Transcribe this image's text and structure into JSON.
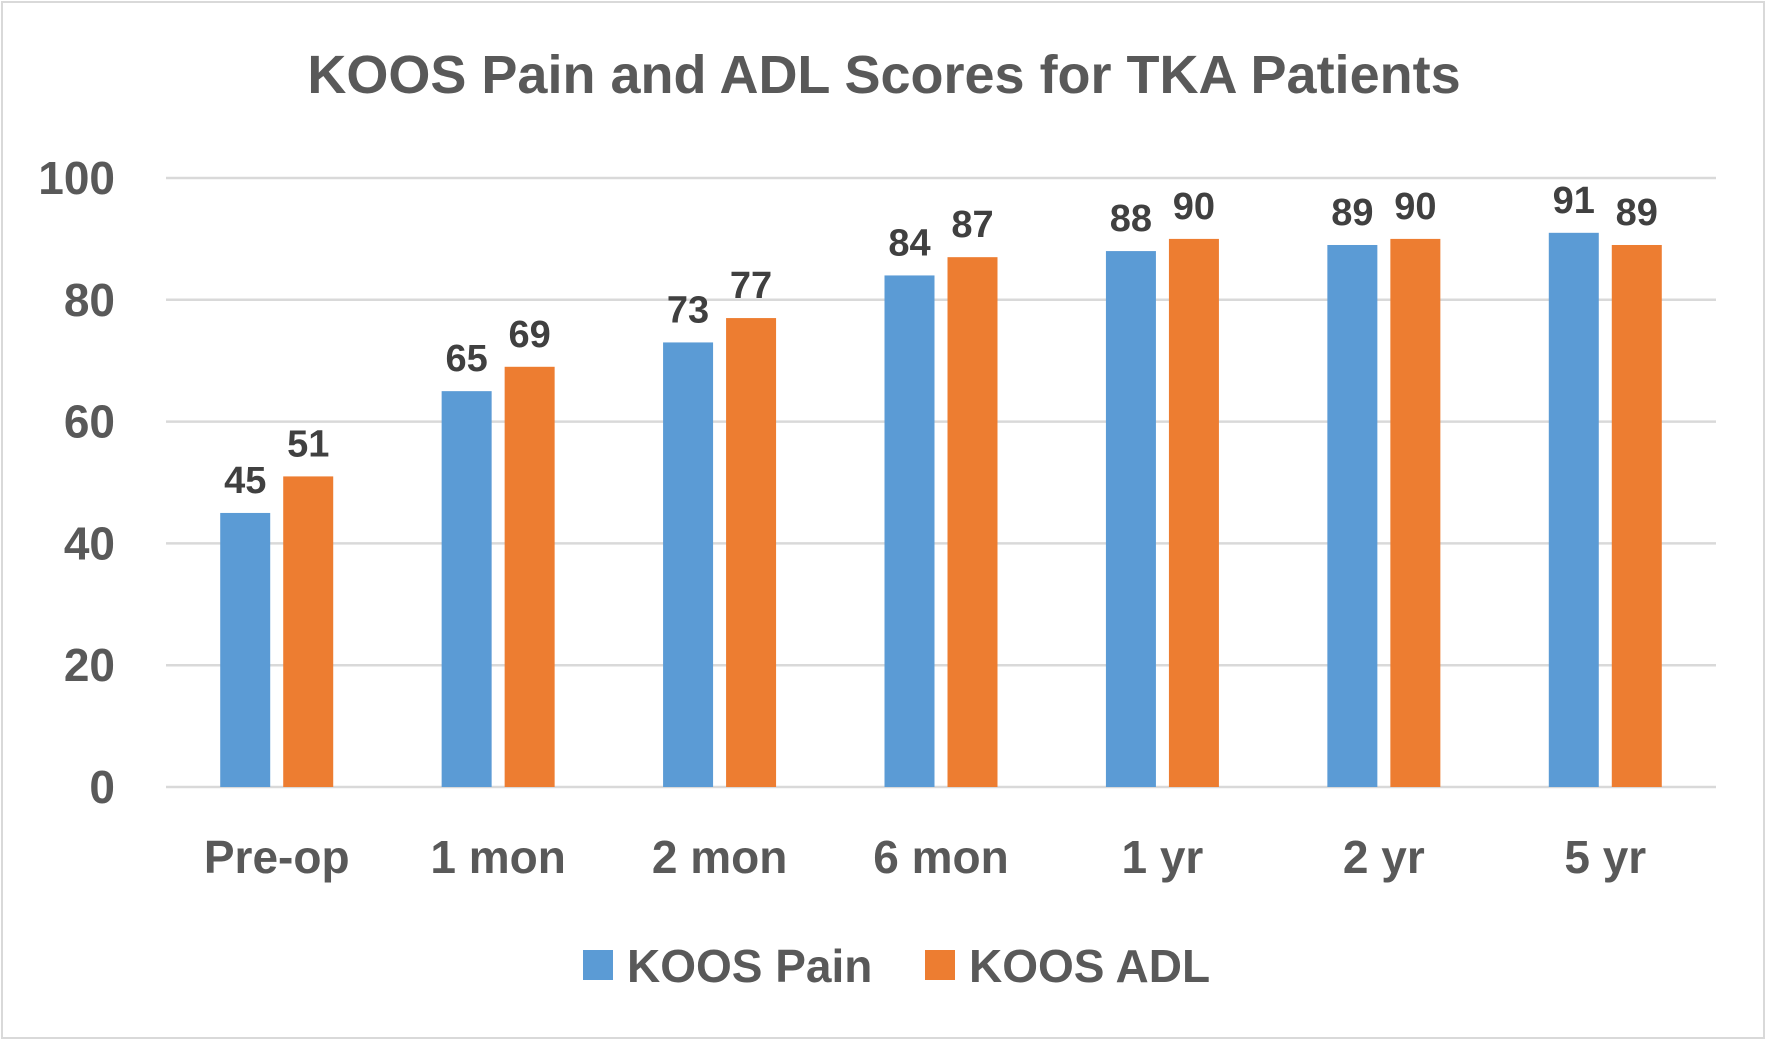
{
  "chart_data": {
    "type": "bar",
    "title": "KOOS Pain and ADL Scores for TKA Patients",
    "xlabel": "",
    "ylabel": "",
    "ylim": [
      0,
      100
    ],
    "yticks": [
      "0",
      "20",
      "40",
      "60",
      "80",
      "100"
    ],
    "grid": true,
    "legend_position": "bottom",
    "categories": [
      "Pre-op",
      "1 mon",
      "2 mon",
      "6 mon",
      "1 yr",
      "2 yr",
      "5 yr"
    ],
    "series": [
      {
        "name": "KOOS Pain",
        "color": "#5b9bd5",
        "values": [
          45,
          65,
          73,
          84,
          88,
          89,
          91
        ]
      },
      {
        "name": "KOOS ADL",
        "color": "#ed7d31",
        "values": [
          51,
          69,
          77,
          87,
          90,
          90,
          89
        ]
      }
    ]
  }
}
